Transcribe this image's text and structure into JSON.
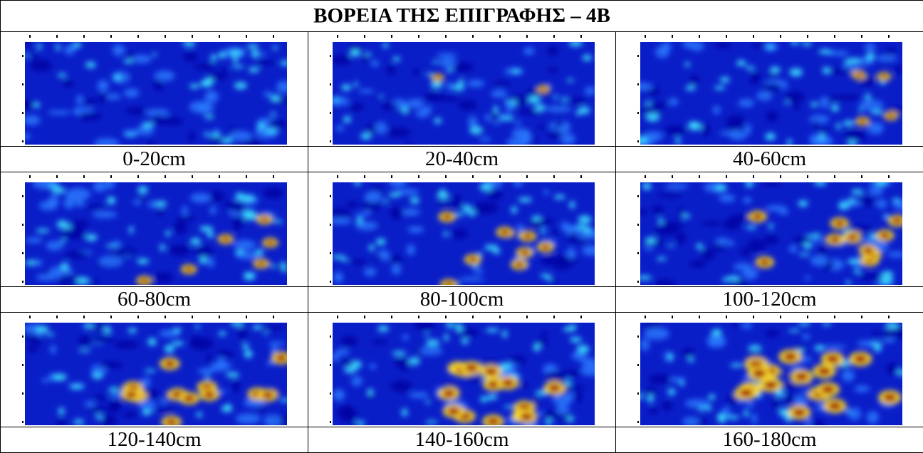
{
  "header": {
    "title": "ΒΟΡΕΙΑ ΤΗΣ ΕΠΙΓΡΑΦΗΣ – 4B"
  },
  "table": {
    "rows": [
      [
        "0-20cm",
        "20-40cm",
        "40-60cm"
      ],
      [
        "60-80cm",
        "80-100cm",
        "100-120cm"
      ],
      [
        "120-140cm",
        "140-160cm",
        "160-180cm"
      ]
    ]
  }
}
